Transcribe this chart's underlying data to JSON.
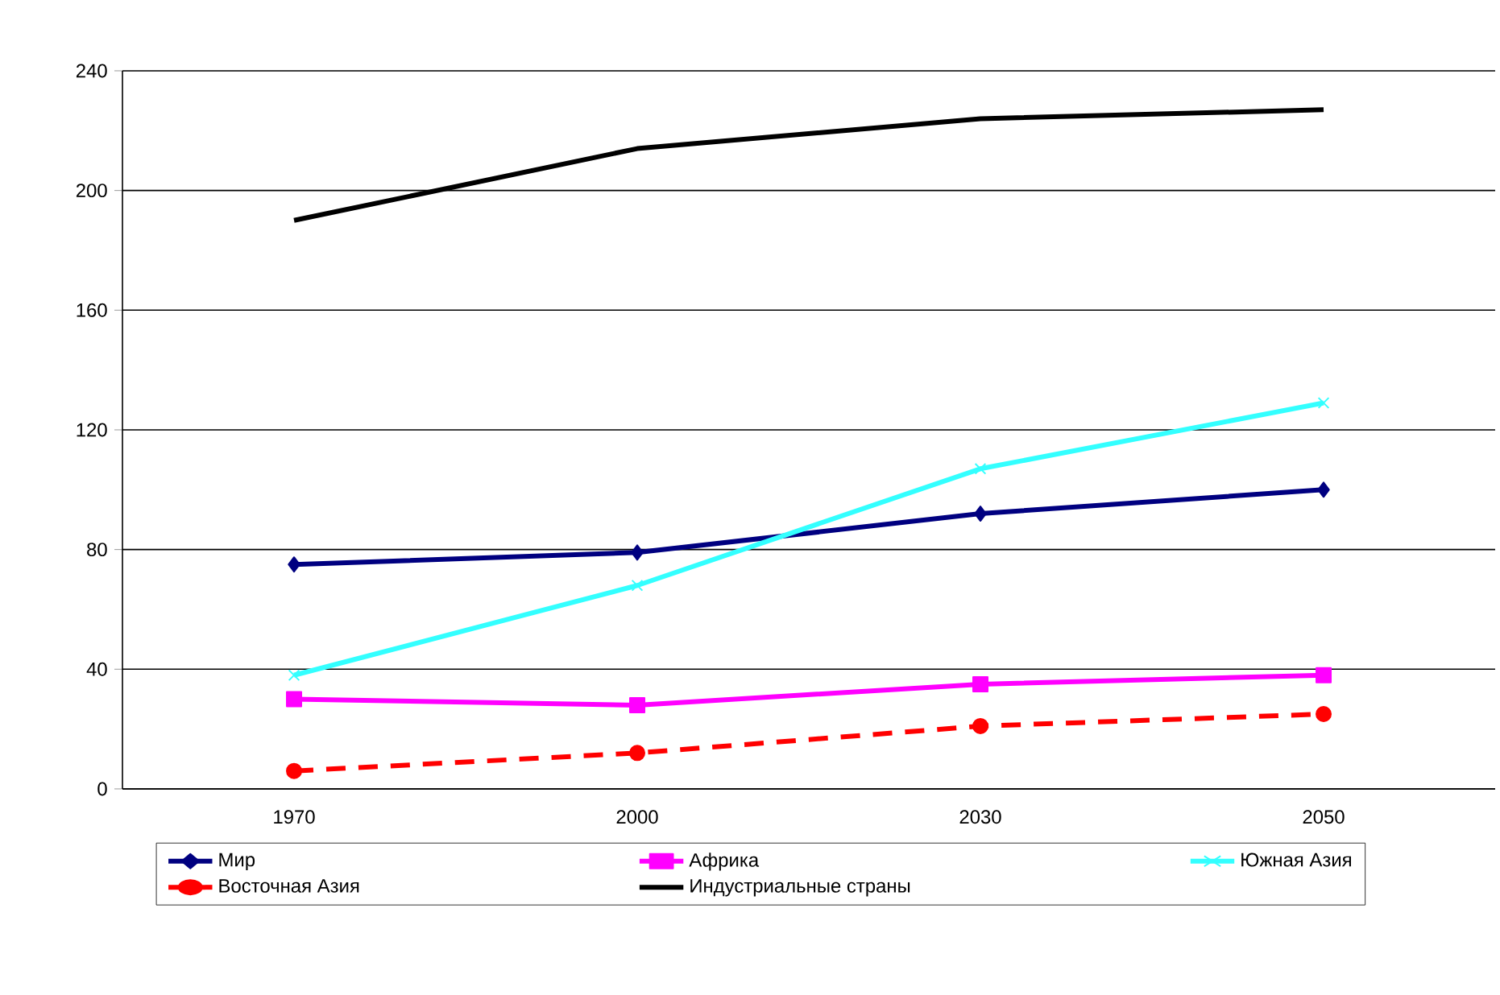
{
  "chart_data": {
    "type": "line",
    "categories": [
      "1970",
      "2000",
      "2030",
      "2050"
    ],
    "ylim": [
      0,
      240
    ],
    "yticks": [
      0,
      40,
      80,
      120,
      160,
      200,
      240
    ],
    "grid": "y",
    "legend": "bottom",
    "series": [
      {
        "name": "Мир",
        "color": "#000080",
        "marker": "diamond",
        "values": [
          75,
          79,
          92,
          100
        ]
      },
      {
        "name": "Африка",
        "color": "#ff00ff",
        "marker": "square",
        "values": [
          30,
          28,
          35,
          38
        ]
      },
      {
        "name": "Южная Азия",
        "color": "#33ffff",
        "marker": "cross",
        "values": [
          38,
          68,
          107,
          129
        ]
      },
      {
        "name": "Восточная Азия",
        "color": "#ff0000",
        "marker": "circle",
        "line_style": "dashed",
        "values": [
          6,
          12,
          21,
          25
        ]
      },
      {
        "name": "Индустриальные страны",
        "color": "#000000",
        "marker": "none",
        "values": [
          190,
          214,
          224,
          227
        ]
      }
    ]
  }
}
